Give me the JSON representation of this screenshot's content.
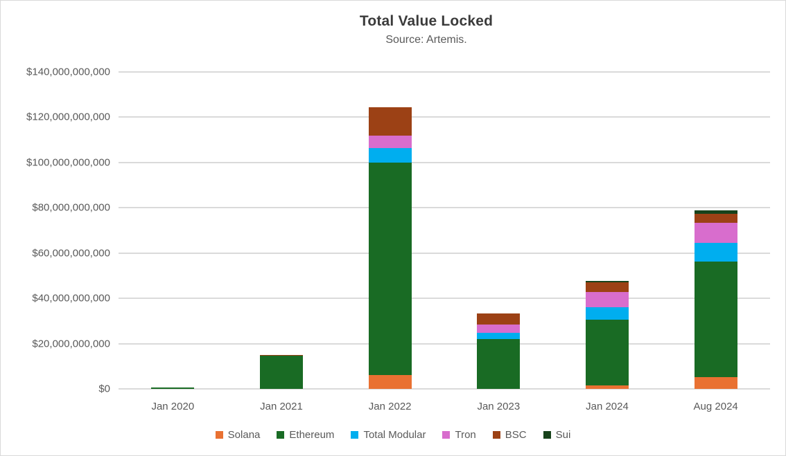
{
  "header": {
    "title": "Total Value Locked",
    "subtitle": "Source: Artemis."
  },
  "chart_data": {
    "type": "bar",
    "stacked": true,
    "title": "Total Value Locked",
    "subtitle": "Source: Artemis.",
    "unit": "USD billions",
    "categories": [
      "Jan 2020",
      "Jan 2021",
      "Jan 2022",
      "Jan 2023",
      "Jan 2024",
      "Aug 2024"
    ],
    "series": [
      {
        "name": "Solana",
        "color": "#E97132",
        "values": [
          0,
          0,
          6.2,
          0,
          1.5,
          5.2
        ]
      },
      {
        "name": "Ethereum",
        "color": "#196B24",
        "values": [
          0.6,
          14.6,
          93.8,
          22.1,
          29.2,
          51.2
        ]
      },
      {
        "name": "Total Modular",
        "color": "#00AEEF",
        "values": [
          0,
          0,
          6.5,
          2.7,
          5.4,
          8.1
        ]
      },
      {
        "name": "Tron",
        "color": "#D86DCD",
        "values": [
          0,
          0,
          5.4,
          3.6,
          6.7,
          8.8
        ]
      },
      {
        "name": "BSC",
        "color": "#9C4115",
        "values": [
          0,
          0.5,
          12.6,
          5.0,
          4.2,
          4.2
        ]
      },
      {
        "name": "Sui",
        "color": "#17421B",
        "values": [
          0,
          0,
          0,
          0,
          0.6,
          1.3
        ]
      }
    ],
    "totals_billions": [
      0.6,
      15.1,
      124.5,
      33.4,
      47.6,
      78.8
    ],
    "ylabel": "",
    "xlabel": "",
    "ylim_billions": [
      0,
      140
    ],
    "y_tick_step_billions": 20,
    "y_tick_labels": [
      "$0",
      "$20,000,000,000",
      "$40,000,000,000",
      "$60,000,000,000",
      "$80,000,000,000",
      "$100,000,000,000",
      "$120,000,000,000",
      "$140,000,000,000"
    ],
    "grid": true,
    "gridline_color": "#DADADA",
    "legend_position": "bottom"
  }
}
